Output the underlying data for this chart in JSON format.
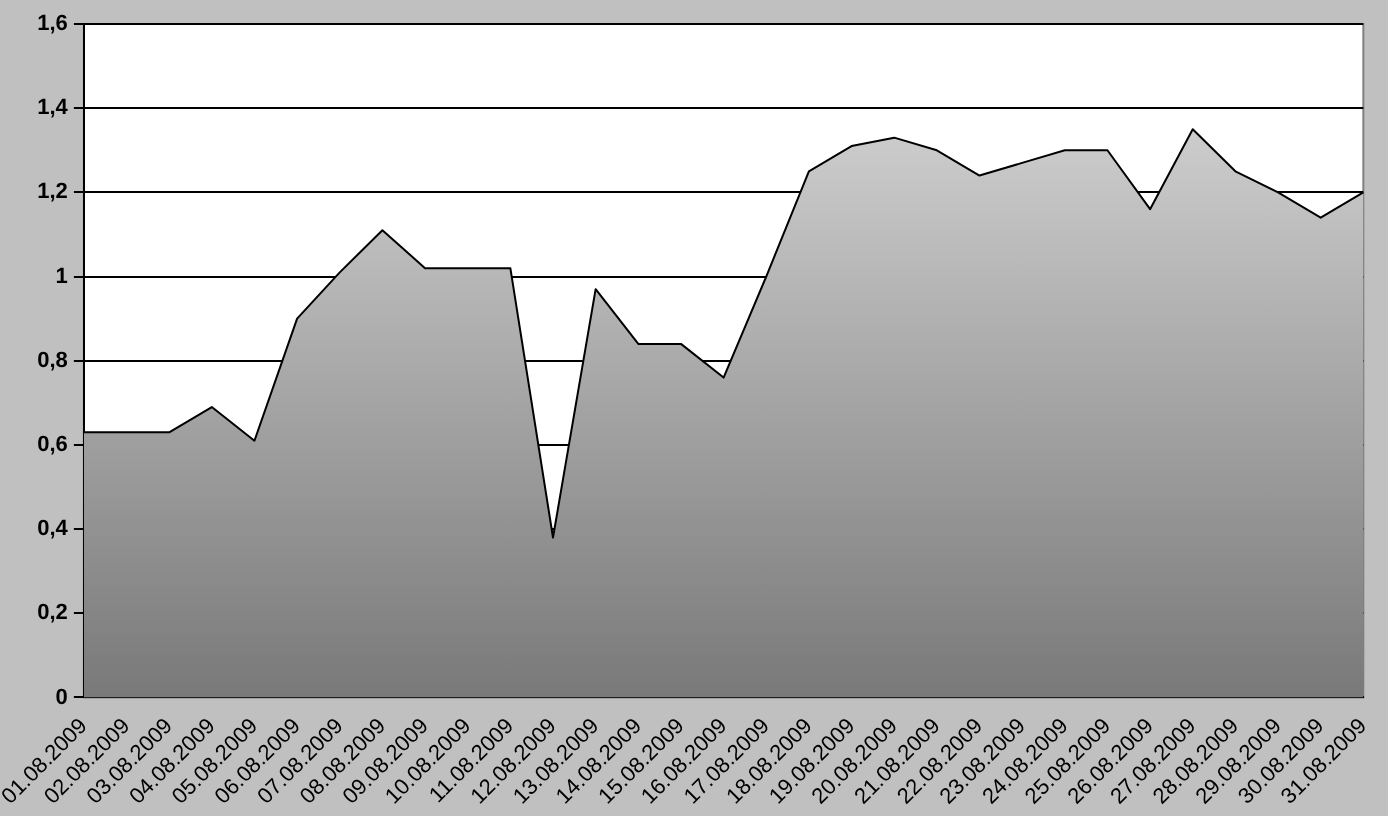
{
  "chart_data": {
    "type": "area",
    "categories": [
      "01.08.2009",
      "02.08.2009",
      "03.08.2009",
      "04.08.2009",
      "05.08.2009",
      "06.08.2009",
      "07.08.2009",
      "08.08.2009",
      "09.08.2009",
      "10.08.2009",
      "11.08.2009",
      "12.08.2009",
      "13.08.2009",
      "14.08.2009",
      "15.08.2009",
      "16.08.2009",
      "17.08.2009",
      "18.08.2009",
      "19.08.2009",
      "20.08.2009",
      "21.08.2009",
      "22.08.2009",
      "23.08.2009",
      "24.08.2009",
      "25.08.2009",
      "26.08.2009",
      "27.08.2009",
      "28.08.2009",
      "29.08.2009",
      "30.08.2009",
      "31.08.2009"
    ],
    "series": [
      {
        "color": "#a8a8a8",
        "values": [
          0.63,
          0.63,
          0.63,
          0.69,
          0.61,
          0.9,
          1.01,
          1.11,
          1.02,
          1.02,
          1.02,
          0.38,
          0.97,
          0.84,
          0.84,
          0.76,
          1.0,
          1.25,
          1.31,
          1.33,
          1.3,
          1.24,
          1.27,
          1.3,
          1.3,
          1.16,
          1.35,
          1.25,
          1.2,
          1.14,
          1.2
        ]
      }
    ],
    "ylim": [
      0,
      1.6
    ],
    "yticks": [
      0,
      {
        "value": 0.2,
        "label": "0,2"
      },
      {
        "value": 0.4,
        "label": "0,4"
      },
      {
        "value": 0.6,
        "label": "0,6"
      },
      {
        "value": 0.8,
        "label": "0,8"
      },
      1,
      {
        "value": 1.2,
        "label": "1,2"
      },
      {
        "value": 1.4,
        "label": "1,4"
      },
      {
        "value": 1.6,
        "label": "1,6"
      }
    ],
    "grid": "y",
    "legend": false
  }
}
